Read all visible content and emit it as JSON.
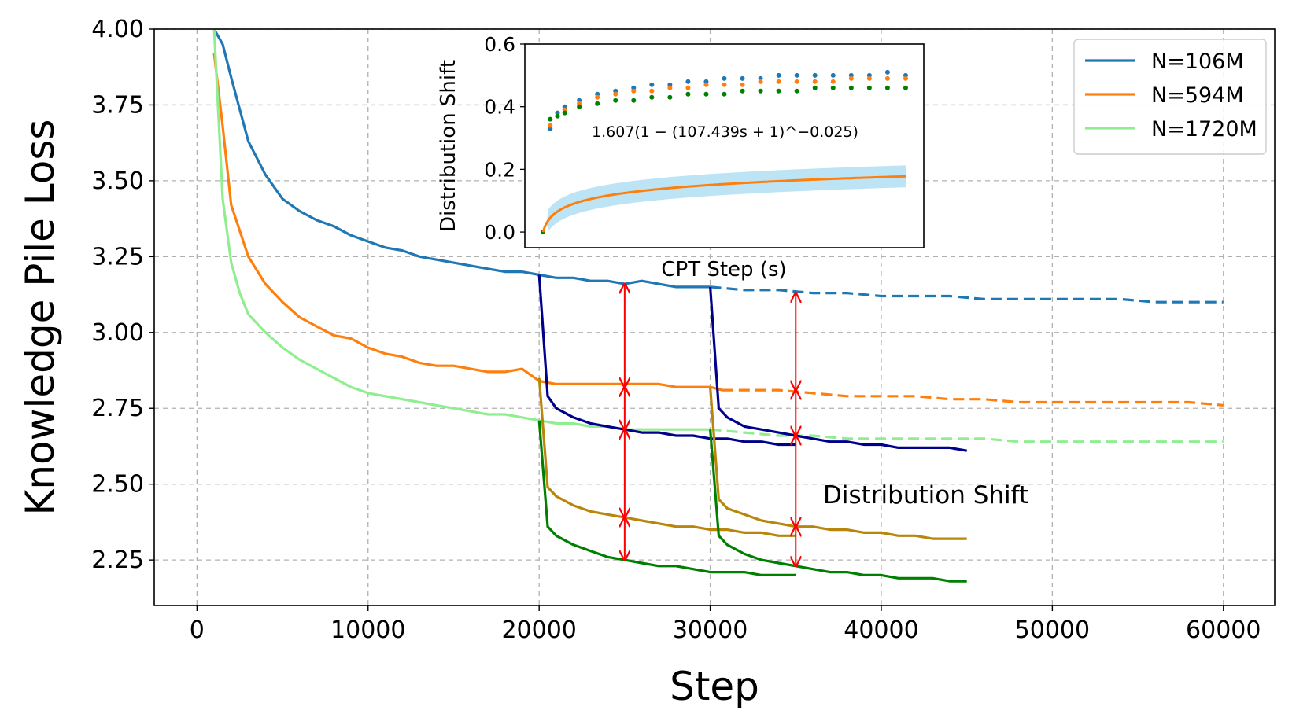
{
  "chart_data": [
    {
      "type": "line",
      "xlabel": "Step",
      "ylabel": "Knowledge Pile Loss",
      "xlim": [
        -2500,
        63000
      ],
      "ylim": [
        2.1,
        4.0
      ],
      "xticks": [
        0,
        10000,
        20000,
        30000,
        40000,
        50000,
        60000
      ],
      "xtick_labels": [
        "0",
        "10000",
        "20000",
        "30000",
        "40000",
        "50000",
        "60000"
      ],
      "yticks": [
        2.25,
        2.5,
        2.75,
        3.0,
        3.25,
        3.5,
        3.75,
        4.0
      ],
      "ytick_labels": [
        "2.25",
        "2.50",
        "2.75",
        "3.00",
        "3.25",
        "3.50",
        "3.75",
        "4.00"
      ],
      "grid": true,
      "legend": "top-right",
      "annotation": "Distribution Shift",
      "series": [
        {
          "name": "N=106M",
          "color": "#1f77b4",
          "style": "solid",
          "x": [
            1000,
            1500,
            2000,
            3000,
            4000,
            5000,
            6000,
            7000,
            8000,
            9000,
            10000,
            11000,
            12000,
            13000,
            14000,
            15000,
            16000,
            17000,
            18000,
            19000,
            20000,
            21000,
            22000,
            23000,
            24000,
            25000,
            26000,
            27000,
            28000,
            29000,
            30000
          ],
          "y": [
            4.0,
            3.95,
            3.84,
            3.63,
            3.52,
            3.44,
            3.4,
            3.37,
            3.35,
            3.32,
            3.3,
            3.28,
            3.27,
            3.25,
            3.24,
            3.23,
            3.22,
            3.21,
            3.2,
            3.2,
            3.19,
            3.18,
            3.18,
            3.17,
            3.17,
            3.16,
            3.17,
            3.16,
            3.15,
            3.15,
            3.15
          ]
        },
        {
          "name": "",
          "color": "#1f77b4",
          "style": "dashed",
          "x": [
            30000,
            32000,
            34000,
            36000,
            38000,
            40000,
            42000,
            44000,
            46000,
            48000,
            50000,
            52000,
            54000,
            56000,
            58000,
            60000
          ],
          "y": [
            3.15,
            3.14,
            3.14,
            3.13,
            3.13,
            3.12,
            3.12,
            3.12,
            3.11,
            3.11,
            3.11,
            3.11,
            3.11,
            3.1,
            3.1,
            3.1
          ]
        },
        {
          "name": "N=594M",
          "color": "#ff7f0e",
          "style": "solid",
          "x": [
            1000,
            1500,
            2000,
            3000,
            4000,
            5000,
            6000,
            7000,
            8000,
            9000,
            10000,
            11000,
            12000,
            13000,
            14000,
            15000,
            16000,
            17000,
            18000,
            19000,
            20000,
            21000,
            22000,
            23000,
            24000,
            25000,
            26000,
            27000,
            28000,
            29000,
            30000,
            30700
          ],
          "y": [
            3.92,
            3.68,
            3.42,
            3.25,
            3.16,
            3.1,
            3.05,
            3.02,
            2.99,
            2.98,
            2.95,
            2.93,
            2.92,
            2.9,
            2.89,
            2.89,
            2.88,
            2.87,
            2.87,
            2.88,
            2.84,
            2.83,
            2.83,
            2.83,
            2.83,
            2.83,
            2.83,
            2.83,
            2.82,
            2.82,
            2.82,
            2.81
          ]
        },
        {
          "name": "",
          "color": "#ff7f0e",
          "style": "dashed",
          "x": [
            30700,
            32000,
            34000,
            36000,
            38000,
            40000,
            42000,
            44000,
            46000,
            48000,
            50000,
            52000,
            54000,
            56000,
            58000,
            60000
          ],
          "y": [
            2.81,
            2.81,
            2.81,
            2.8,
            2.79,
            2.79,
            2.79,
            2.78,
            2.78,
            2.77,
            2.77,
            2.77,
            2.77,
            2.77,
            2.77,
            2.76
          ]
        },
        {
          "name": "N=1720M",
          "color": "#90ee90",
          "style": "solid",
          "x": [
            1000,
            1500,
            2000,
            2500,
            3000,
            4000,
            5000,
            6000,
            7000,
            8000,
            9000,
            10000,
            11000,
            12000,
            13000,
            14000,
            15000,
            16000,
            17000,
            18000,
            19000,
            20000,
            21000,
            22000,
            23000,
            24000,
            25000,
            26000,
            27000,
            28000,
            29000,
            30000
          ],
          "y": [
            4.0,
            3.44,
            3.23,
            3.13,
            3.06,
            3.0,
            2.95,
            2.91,
            2.88,
            2.85,
            2.82,
            2.8,
            2.79,
            2.78,
            2.77,
            2.76,
            2.75,
            2.74,
            2.73,
            2.73,
            2.72,
            2.71,
            2.7,
            2.7,
            2.69,
            2.69,
            2.68,
            2.68,
            2.68,
            2.68,
            2.68,
            2.68
          ]
        },
        {
          "name": "",
          "color": "#90ee90",
          "style": "dashed",
          "x": [
            30000,
            32000,
            34000,
            36000,
            38000,
            40000,
            42000,
            44000,
            46000,
            48000,
            50000,
            52000,
            54000,
            56000,
            58000,
            60000
          ],
          "y": [
            2.68,
            2.67,
            2.66,
            2.66,
            2.65,
            2.65,
            2.65,
            2.65,
            2.65,
            2.64,
            2.64,
            2.64,
            2.64,
            2.64,
            2.64,
            2.64
          ]
        },
        {
          "name": "",
          "color": "#00008b",
          "style": "solid",
          "x": [
            20000,
            20500,
            21000,
            22000,
            23000,
            24000,
            25000,
            26000,
            27000,
            28000,
            29000,
            30000,
            31000,
            32000,
            33000,
            34000,
            35000
          ],
          "y": [
            3.19,
            2.79,
            2.75,
            2.72,
            2.7,
            2.69,
            2.68,
            2.67,
            2.67,
            2.66,
            2.66,
            2.65,
            2.65,
            2.64,
            2.64,
            2.63,
            2.63
          ]
        },
        {
          "name": "",
          "color": "#00008b",
          "style": "solid",
          "x": [
            30000,
            30500,
            31000,
            32000,
            33000,
            34000,
            35000,
            36000,
            37000,
            38000,
            39000,
            40000,
            41000,
            42000,
            43000,
            44000,
            45000
          ],
          "y": [
            3.15,
            2.75,
            2.72,
            2.69,
            2.68,
            2.67,
            2.66,
            2.65,
            2.64,
            2.64,
            2.63,
            2.63,
            2.62,
            2.62,
            2.62,
            2.62,
            2.61
          ]
        },
        {
          "name": "",
          "color": "#b8860b",
          "style": "solid",
          "x": [
            20000,
            20500,
            21000,
            22000,
            23000,
            24000,
            25000,
            26000,
            27000,
            28000,
            29000,
            30000,
            31000,
            32000,
            33000,
            34000,
            35000
          ],
          "y": [
            2.85,
            2.49,
            2.46,
            2.43,
            2.41,
            2.4,
            2.39,
            2.38,
            2.37,
            2.36,
            2.36,
            2.35,
            2.35,
            2.34,
            2.34,
            2.33,
            2.33
          ]
        },
        {
          "name": "",
          "color": "#b8860b",
          "style": "solid",
          "x": [
            30000,
            30500,
            31000,
            32000,
            33000,
            34000,
            35000,
            36000,
            37000,
            38000,
            39000,
            40000,
            41000,
            42000,
            43000,
            44000,
            45000
          ],
          "y": [
            2.82,
            2.45,
            2.42,
            2.4,
            2.38,
            2.37,
            2.36,
            2.36,
            2.35,
            2.35,
            2.34,
            2.34,
            2.33,
            2.33,
            2.32,
            2.32,
            2.32
          ]
        },
        {
          "name": "",
          "color": "#008000",
          "style": "solid",
          "x": [
            20000,
            20500,
            21000,
            22000,
            23000,
            24000,
            25000,
            26000,
            27000,
            28000,
            29000,
            30000,
            31000,
            32000,
            33000,
            34000,
            35000
          ],
          "y": [
            2.71,
            2.36,
            2.33,
            2.3,
            2.28,
            2.26,
            2.25,
            2.24,
            2.23,
            2.23,
            2.22,
            2.21,
            2.21,
            2.21,
            2.2,
            2.2,
            2.2
          ]
        },
        {
          "name": "",
          "color": "#008000",
          "style": "solid",
          "x": [
            30000,
            30500,
            31000,
            32000,
            33000,
            34000,
            35000,
            36000,
            37000,
            38000,
            39000,
            40000,
            41000,
            42000,
            43000,
            44000,
            45000
          ],
          "y": [
            2.68,
            2.33,
            2.3,
            2.27,
            2.25,
            2.24,
            2.23,
            2.22,
            2.21,
            2.21,
            2.2,
            2.2,
            2.19,
            2.19,
            2.19,
            2.18,
            2.18
          ]
        }
      ],
      "arrows": [
        {
          "x": 25000,
          "y_from": 3.16,
          "y_to": 2.82
        },
        {
          "x": 25000,
          "y_from": 2.82,
          "y_to": 2.68
        },
        {
          "x": 25000,
          "y_from": 2.68,
          "y_to": 2.39
        },
        {
          "x": 25000,
          "y_from": 2.39,
          "y_to": 2.25
        },
        {
          "x": 35000,
          "y_from": 3.13,
          "y_to": 2.81
        },
        {
          "x": 35000,
          "y_from": 2.81,
          "y_to": 2.66
        },
        {
          "x": 35000,
          "y_from": 2.66,
          "y_to": 2.36
        },
        {
          "x": 35000,
          "y_from": 2.36,
          "y_to": 2.23
        }
      ]
    },
    {
      "type": "scatter",
      "xlabel": "CPT Step (s)",
      "ylabel": "Distribution Shift",
      "ylim": [
        -0.05,
        0.6
      ],
      "xlim": [
        -0.05,
        1.05
      ],
      "yticks": [
        0.0,
        0.2,
        0.4,
        0.6
      ],
      "ytick_labels": [
        "0.0",
        "0.2",
        "0.4",
        "0.6"
      ],
      "xticks": [],
      "annotation": "1.607(1 − (107.439s + 1)^−0.025)",
      "fit_params": {
        "a": 1.607,
        "b": 107.439,
        "c": -0.025
      },
      "fit_color": "#ff7f0e",
      "band_color": "#87ceeb",
      "series": [
        {
          "color": "#1f77b4",
          "x": [
            0,
            0.02,
            0.04,
            0.06,
            0.1,
            0.15,
            0.2,
            0.25,
            0.3,
            0.35,
            0.4,
            0.45,
            0.5,
            0.55,
            0.6,
            0.65,
            0.7,
            0.75,
            0.8,
            0.85,
            0.9,
            0.95,
            1.0
          ],
          "y": [
            0.0,
            0.33,
            0.38,
            0.4,
            0.42,
            0.44,
            0.45,
            0.46,
            0.47,
            0.47,
            0.48,
            0.48,
            0.49,
            0.49,
            0.49,
            0.5,
            0.5,
            0.5,
            0.5,
            0.5,
            0.5,
            0.51,
            0.5
          ]
        },
        {
          "color": "#ff7f0e",
          "x": [
            0,
            0.02,
            0.04,
            0.06,
            0.1,
            0.15,
            0.2,
            0.25,
            0.3,
            0.35,
            0.4,
            0.45,
            0.5,
            0.55,
            0.6,
            0.65,
            0.7,
            0.75,
            0.8,
            0.85,
            0.9,
            0.95,
            1.0
          ],
          "y": [
            0.0,
            0.34,
            0.37,
            0.39,
            0.41,
            0.43,
            0.44,
            0.45,
            0.45,
            0.46,
            0.46,
            0.47,
            0.47,
            0.47,
            0.48,
            0.48,
            0.48,
            0.48,
            0.48,
            0.49,
            0.49,
            0.49,
            0.49
          ]
        },
        {
          "color": "#008000",
          "x": [
            0,
            0.02,
            0.04,
            0.06,
            0.1,
            0.15,
            0.2,
            0.25,
            0.3,
            0.35,
            0.4,
            0.45,
            0.5,
            0.55,
            0.6,
            0.65,
            0.7,
            0.75,
            0.8,
            0.85,
            0.9,
            0.95,
            1.0
          ],
          "y": [
            0.0,
            0.36,
            0.37,
            0.38,
            0.4,
            0.41,
            0.42,
            0.42,
            0.43,
            0.43,
            0.44,
            0.44,
            0.44,
            0.45,
            0.45,
            0.45,
            0.45,
            0.46,
            0.46,
            0.46,
            0.46,
            0.46,
            0.46
          ]
        }
      ]
    }
  ]
}
